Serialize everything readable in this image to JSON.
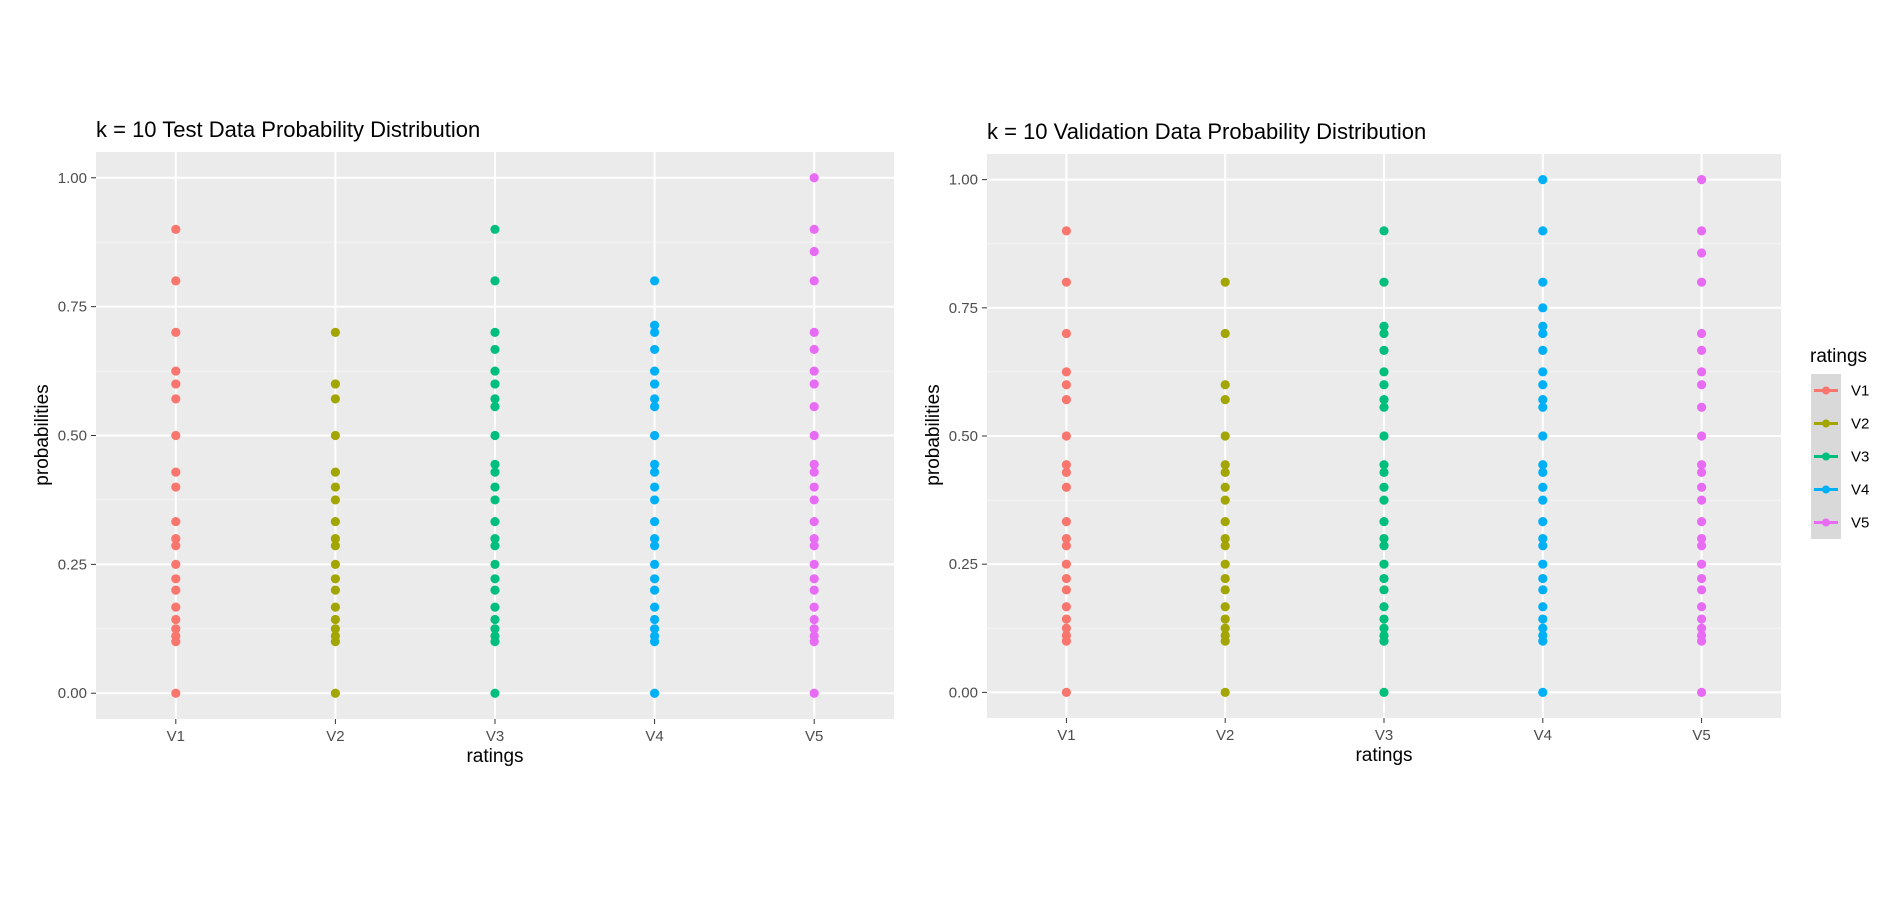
{
  "chart_data": [
    {
      "type": "scatter",
      "title": "k = 10 Test Data Probability Distribution",
      "xlabel": "ratings",
      "ylabel": "probabilities",
      "categories": [
        "V1",
        "V2",
        "V3",
        "V4",
        "V5"
      ],
      "ylim": [
        -0.05,
        1.05
      ],
      "yticks": [
        "0.00",
        "0.25",
        "0.50",
        "0.75",
        "1.00"
      ],
      "grid": true,
      "series": [
        {
          "name": "V1",
          "color": "#F8766D",
          "values": [
            0,
            0.1,
            0.111,
            0.125,
            0.143,
            0.167,
            0.2,
            0.222,
            0.25,
            0.286,
            0.3,
            0.333,
            0.4,
            0.429,
            0.5,
            0.571,
            0.6,
            0.625,
            0.7,
            0.8,
            0.9
          ]
        },
        {
          "name": "V2",
          "color": "#A3A500",
          "values": [
            0,
            0.1,
            0.111,
            0.125,
            0.143,
            0.167,
            0.2,
            0.222,
            0.25,
            0.286,
            0.3,
            0.333,
            0.375,
            0.4,
            0.429,
            0.5,
            0.571,
            0.6,
            0.7
          ]
        },
        {
          "name": "V3",
          "color": "#00BF7D",
          "values": [
            0,
            0.1,
            0.111,
            0.125,
            0.143,
            0.167,
            0.2,
            0.222,
            0.25,
            0.286,
            0.3,
            0.333,
            0.375,
            0.4,
            0.429,
            0.444,
            0.5,
            0.556,
            0.571,
            0.6,
            0.625,
            0.667,
            0.7,
            0.8,
            0.9
          ]
        },
        {
          "name": "V4",
          "color": "#00B0F6",
          "values": [
            0,
            0.1,
            0.111,
            0.125,
            0.143,
            0.167,
            0.2,
            0.222,
            0.25,
            0.286,
            0.3,
            0.333,
            0.375,
            0.4,
            0.429,
            0.444,
            0.5,
            0.556,
            0.571,
            0.6,
            0.625,
            0.667,
            0.7,
            0.714,
            0.8
          ]
        },
        {
          "name": "V5",
          "color": "#E76BF3",
          "values": [
            0,
            0.1,
            0.111,
            0.125,
            0.143,
            0.167,
            0.2,
            0.222,
            0.25,
            0.286,
            0.3,
            0.333,
            0.375,
            0.4,
            0.429,
            0.444,
            0.5,
            0.556,
            0.6,
            0.625,
            0.667,
            0.7,
            0.8,
            0.857,
            0.9,
            1.0
          ]
        }
      ]
    },
    {
      "type": "scatter",
      "title": "k = 10 Validation Data Probability Distribution",
      "xlabel": "ratings",
      "ylabel": "probabilities",
      "categories": [
        "V1",
        "V2",
        "V3",
        "V4",
        "V5"
      ],
      "ylim": [
        -0.05,
        1.05
      ],
      "yticks": [
        "0.00",
        "0.25",
        "0.50",
        "0.75",
        "1.00"
      ],
      "grid": true,
      "series": [
        {
          "name": "V1",
          "color": "#F8766D",
          "values": [
            0,
            0.1,
            0.111,
            0.125,
            0.143,
            0.167,
            0.2,
            0.222,
            0.25,
            0.286,
            0.3,
            0.333,
            0.4,
            0.429,
            0.444,
            0.5,
            0.571,
            0.6,
            0.625,
            0.7,
            0.8,
            0.9
          ]
        },
        {
          "name": "V2",
          "color": "#A3A500",
          "values": [
            0,
            0.1,
            0.111,
            0.125,
            0.143,
            0.167,
            0.2,
            0.222,
            0.25,
            0.286,
            0.3,
            0.333,
            0.375,
            0.4,
            0.429,
            0.444,
            0.5,
            0.571,
            0.6,
            0.7,
            0.8
          ]
        },
        {
          "name": "V3",
          "color": "#00BF7D",
          "values": [
            0,
            0.1,
            0.111,
            0.125,
            0.143,
            0.167,
            0.2,
            0.222,
            0.25,
            0.286,
            0.3,
            0.333,
            0.375,
            0.4,
            0.429,
            0.444,
            0.5,
            0.556,
            0.571,
            0.6,
            0.625,
            0.667,
            0.7,
            0.714,
            0.8,
            0.9
          ]
        },
        {
          "name": "V4",
          "color": "#00B0F6",
          "values": [
            0,
            0.1,
            0.111,
            0.125,
            0.143,
            0.167,
            0.2,
            0.222,
            0.25,
            0.286,
            0.3,
            0.333,
            0.375,
            0.4,
            0.429,
            0.444,
            0.5,
            0.556,
            0.571,
            0.6,
            0.625,
            0.667,
            0.7,
            0.714,
            0.75,
            0.8,
            0.9,
            1.0
          ]
        },
        {
          "name": "V5",
          "color": "#E76BF3",
          "values": [
            0,
            0.1,
            0.111,
            0.125,
            0.143,
            0.167,
            0.2,
            0.222,
            0.25,
            0.286,
            0.3,
            0.333,
            0.375,
            0.4,
            0.429,
            0.444,
            0.5,
            0.556,
            0.6,
            0.625,
            0.667,
            0.7,
            0.8,
            0.857,
            0.9,
            1.0
          ]
        }
      ]
    }
  ],
  "legend": {
    "title": "ratings",
    "placement": "right",
    "items": [
      {
        "label": "V1",
        "color": "#F8766D"
      },
      {
        "label": "V2",
        "color": "#A3A500"
      },
      {
        "label": "V3",
        "color": "#00BF7D"
      },
      {
        "label": "V4",
        "color": "#00B0F6"
      },
      {
        "label": "V5",
        "color": "#E76BF3"
      }
    ]
  },
  "theme": {
    "panel_background": "#EBEBEB",
    "grid_major": "#FFFFFF",
    "grid_minor": "#F5F5F5",
    "tick_text": "#4D4D4D",
    "tick_mark": "#333333",
    "legend_key_background": "#D9D9D9"
  }
}
